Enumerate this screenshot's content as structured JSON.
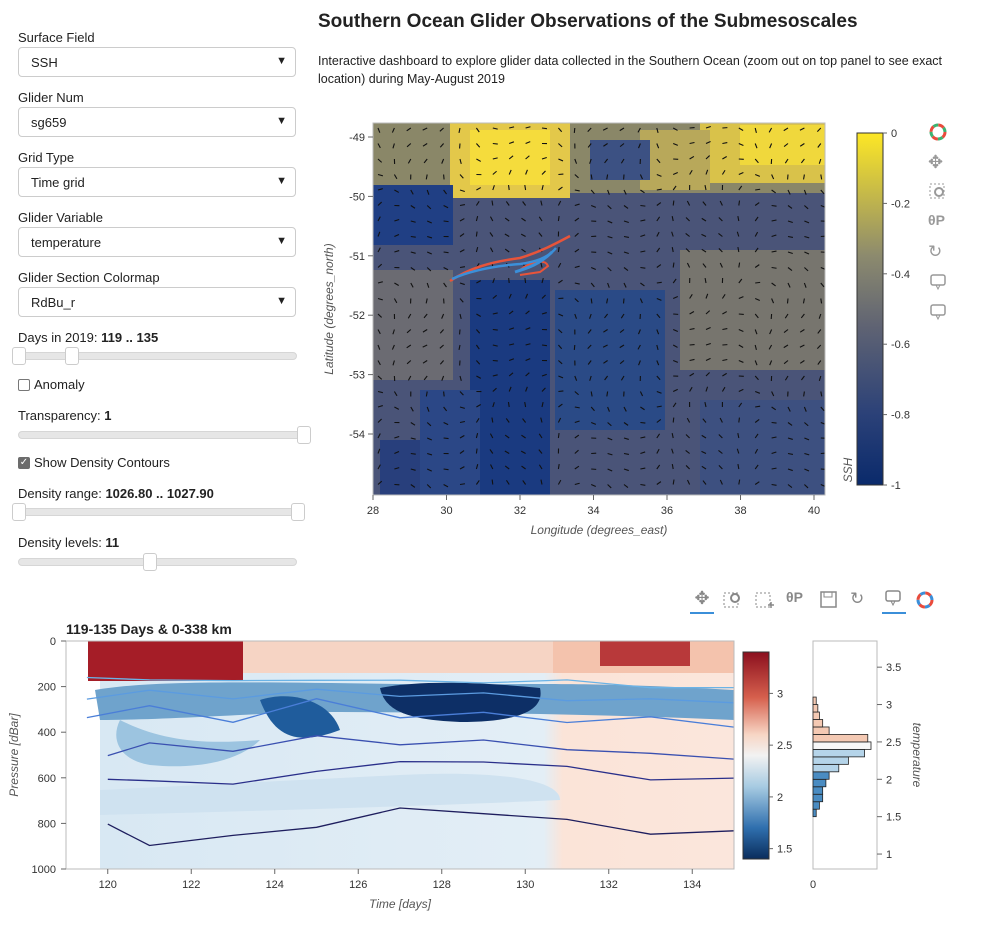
{
  "controls": {
    "surface_field": {
      "label": "Surface Field",
      "value": "SSH"
    },
    "glider_num": {
      "label": "Glider Num",
      "value": "sg659"
    },
    "grid_type": {
      "label": "Grid Type",
      "value": "Time grid"
    },
    "glider_variable": {
      "label": "Glider Variable",
      "value": "temperature"
    },
    "colormap": {
      "label": "Glider Section Colormap",
      "value": "RdBu_r"
    },
    "days": {
      "label": "Days in 2019: ",
      "value": "119 .. 135",
      "start_frac": 0.0,
      "end_frac": 0.19
    },
    "anomaly": {
      "label": "Anomaly",
      "checked": false
    },
    "transparency": {
      "label": "Transparency: ",
      "value": "1",
      "frac": 1.0
    },
    "density_contours": {
      "label": "Show Density Contours",
      "checked": true
    },
    "density_range": {
      "label": "Density range: ",
      "value": "1026.80 .. 1027.90",
      "start_frac": 0.0,
      "end_frac": 1.0
    },
    "density_levels": {
      "label": "Density levels: ",
      "value": "11",
      "frac": 0.47
    }
  },
  "header": {
    "title": "Southern Ocean Glider Observations of the Submesoscales",
    "description": "Interactive dashboard to explore glider data collected in the Southern Ocean (zoom out on top panel to see exact location) during May-August 2019"
  },
  "map": {
    "xlabel": "Longitude (degrees_east)",
    "ylabel": "Latitude (degrees_north)",
    "xticks": [
      "28",
      "30",
      "32",
      "34",
      "36",
      "38",
      "40"
    ],
    "yticks": [
      "-49",
      "-50",
      "-51",
      "-52",
      "-53",
      "-54"
    ],
    "colorbar_label": "SSH",
    "colorbar_ticks": [
      "0",
      "-0.2",
      "-0.4",
      "-0.6",
      "-0.8",
      "-1"
    ]
  },
  "section": {
    "title": "119-135 Days & 0-338 km",
    "xlabel": "Time [days]",
    "ylabel": "Pressure [dBar]",
    "xticks": [
      "120",
      "122",
      "124",
      "126",
      "128",
      "130",
      "132",
      "134"
    ],
    "yticks": [
      "0",
      "200",
      "400",
      "600",
      "800",
      "1000"
    ],
    "colorbar_ticks": [
      "3",
      "2.5",
      "2",
      "1.5"
    ]
  },
  "histogram": {
    "ylabel": "temperature",
    "yticks": [
      "3.5",
      "3",
      "2.5",
      "2",
      "1.5",
      "1"
    ],
    "xticks": [
      "0"
    ]
  },
  "colors": {
    "accent": "#3b8fd9",
    "viridis_top": "#fde725",
    "navy": "#0a2a6b"
  },
  "chart_data": [
    {
      "type": "heatmap",
      "xlabel": "Longitude (degrees_east)",
      "ylabel": "Latitude (degrees_north)",
      "xlim": [
        28,
        40.2
      ],
      "ylim": [
        -54.9,
        -48.8
      ],
      "colorbar_label": "SSH",
      "colorbar_range": [
        -1,
        0
      ]
    },
    {
      "type": "heatmap",
      "title": "119-135 Days & 0-338 km",
      "xlabel": "Time [days]",
      "ylabel": "Pressure [dBar]",
      "xlim": [
        119,
        135
      ],
      "ylim": [
        1000,
        0
      ],
      "colorbar_range": [
        1.4,
        3.4
      ],
      "density_contours_depth_approx": [
        {
          "x": [
            119.5,
            121,
            123,
            125,
            127,
            129,
            131,
            133,
            135
          ],
          "y": [
            160,
            170,
            175,
            170,
            175,
            180,
            175,
            200,
            210
          ]
        },
        {
          "x": [
            119.5,
            121,
            123,
            125,
            127,
            129,
            131,
            133,
            135
          ],
          "y": [
            240,
            230,
            240,
            225,
            230,
            240,
            250,
            265,
            260
          ]
        },
        {
          "x": [
            119.5,
            121,
            123,
            125,
            127,
            129,
            131,
            133,
            135
          ],
          "y": [
            320,
            300,
            340,
            270,
            320,
            330,
            340,
            350,
            360
          ]
        },
        {
          "x": [
            120,
            121,
            123,
            125,
            127,
            129,
            131,
            133,
            135
          ],
          "y": [
            500,
            450,
            480,
            420,
            450,
            440,
            470,
            500,
            510
          ]
        },
        {
          "x": [
            120,
            121,
            123,
            125,
            127,
            129,
            131,
            133,
            135
          ],
          "y": [
            620,
            600,
            640,
            560,
            540,
            520,
            560,
            600,
            610
          ]
        },
        {
          "x": [
            120,
            121,
            123,
            125,
            127,
            129,
            131,
            133,
            135
          ],
          "y": [
            820,
            880,
            870,
            800,
            750,
            740,
            800,
            830,
            850
          ]
        }
      ]
    },
    {
      "type": "bar",
      "ylabel": "temperature",
      "bins": [
        1.5,
        1.6,
        1.7,
        1.8,
        1.9,
        2.0,
        2.1,
        2.2,
        2.3,
        2.4,
        2.5,
        2.6,
        2.7,
        2.8,
        2.9,
        3.0
      ],
      "values": [
        0.1,
        0.2,
        0.3,
        0.3,
        0.4,
        0.5,
        0.8,
        1.1,
        1.6,
        1.8,
        1.7,
        0.5,
        0.3,
        0.2,
        0.15,
        0.1
      ]
    }
  ]
}
